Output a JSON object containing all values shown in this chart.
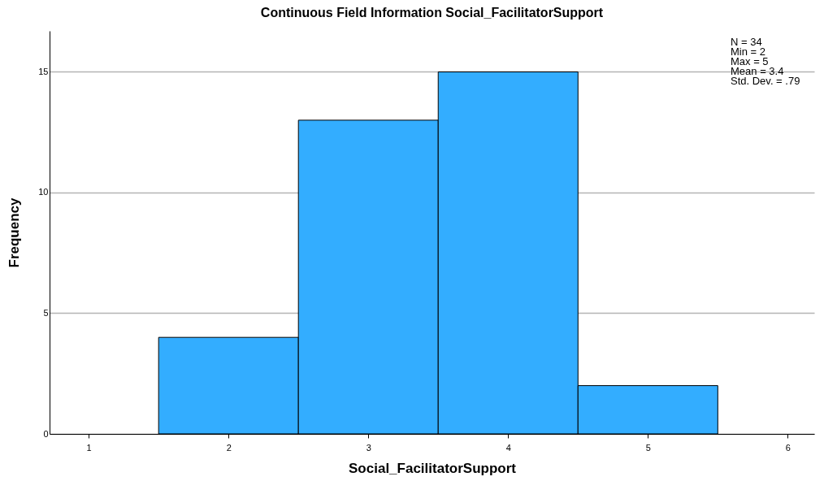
{
  "chart_data": {
    "type": "histogram",
    "title": "Continuous Field Information Social_FacilitatorSupport",
    "xlabel": "Social_FacilitatorSupport",
    "ylabel": "Frequency",
    "bins": [
      1.5,
      2.5,
      3.5,
      4.5,
      5.5
    ],
    "values": [
      4,
      13,
      15,
      2
    ],
    "color": "#33adff",
    "xlim": [
      0.72,
      6.19
    ],
    "xticks": [
      1,
      2,
      3,
      4,
      5,
      6
    ],
    "ylim": [
      0,
      16.7
    ],
    "yticks": [
      0,
      5,
      10,
      15
    ],
    "grid": "y",
    "annotations": [
      "N = 34",
      "Min = 2",
      "Max = 5",
      "Mean = 3.4",
      "Std. Dev. = .79"
    ]
  }
}
